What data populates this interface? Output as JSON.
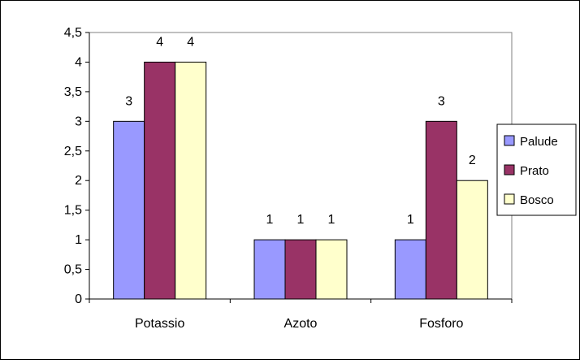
{
  "chart_data": {
    "type": "bar",
    "title": "",
    "xlabel": "",
    "ylabel": "",
    "categories": [
      "Potassio",
      "Azoto",
      "Fosforo"
    ],
    "series": [
      {
        "name": "Palude",
        "values": [
          3,
          1,
          1
        ],
        "color": "#9999ff"
      },
      {
        "name": "Prato",
        "values": [
          4,
          1,
          3
        ],
        "color": "#993366"
      },
      {
        "name": "Bosco",
        "values": [
          4,
          1,
          2
        ],
        "color": "#ffffcc"
      }
    ],
    "ylim": [
      0,
      4.5
    ],
    "yticks": [
      "0",
      "0,5",
      "1",
      "1,5",
      "2",
      "2,5",
      "3",
      "3,5",
      "4",
      "4,5"
    ],
    "data_labels": true,
    "grid": false,
    "plot_background": "#ffffff",
    "legend": {
      "position": "right"
    }
  }
}
